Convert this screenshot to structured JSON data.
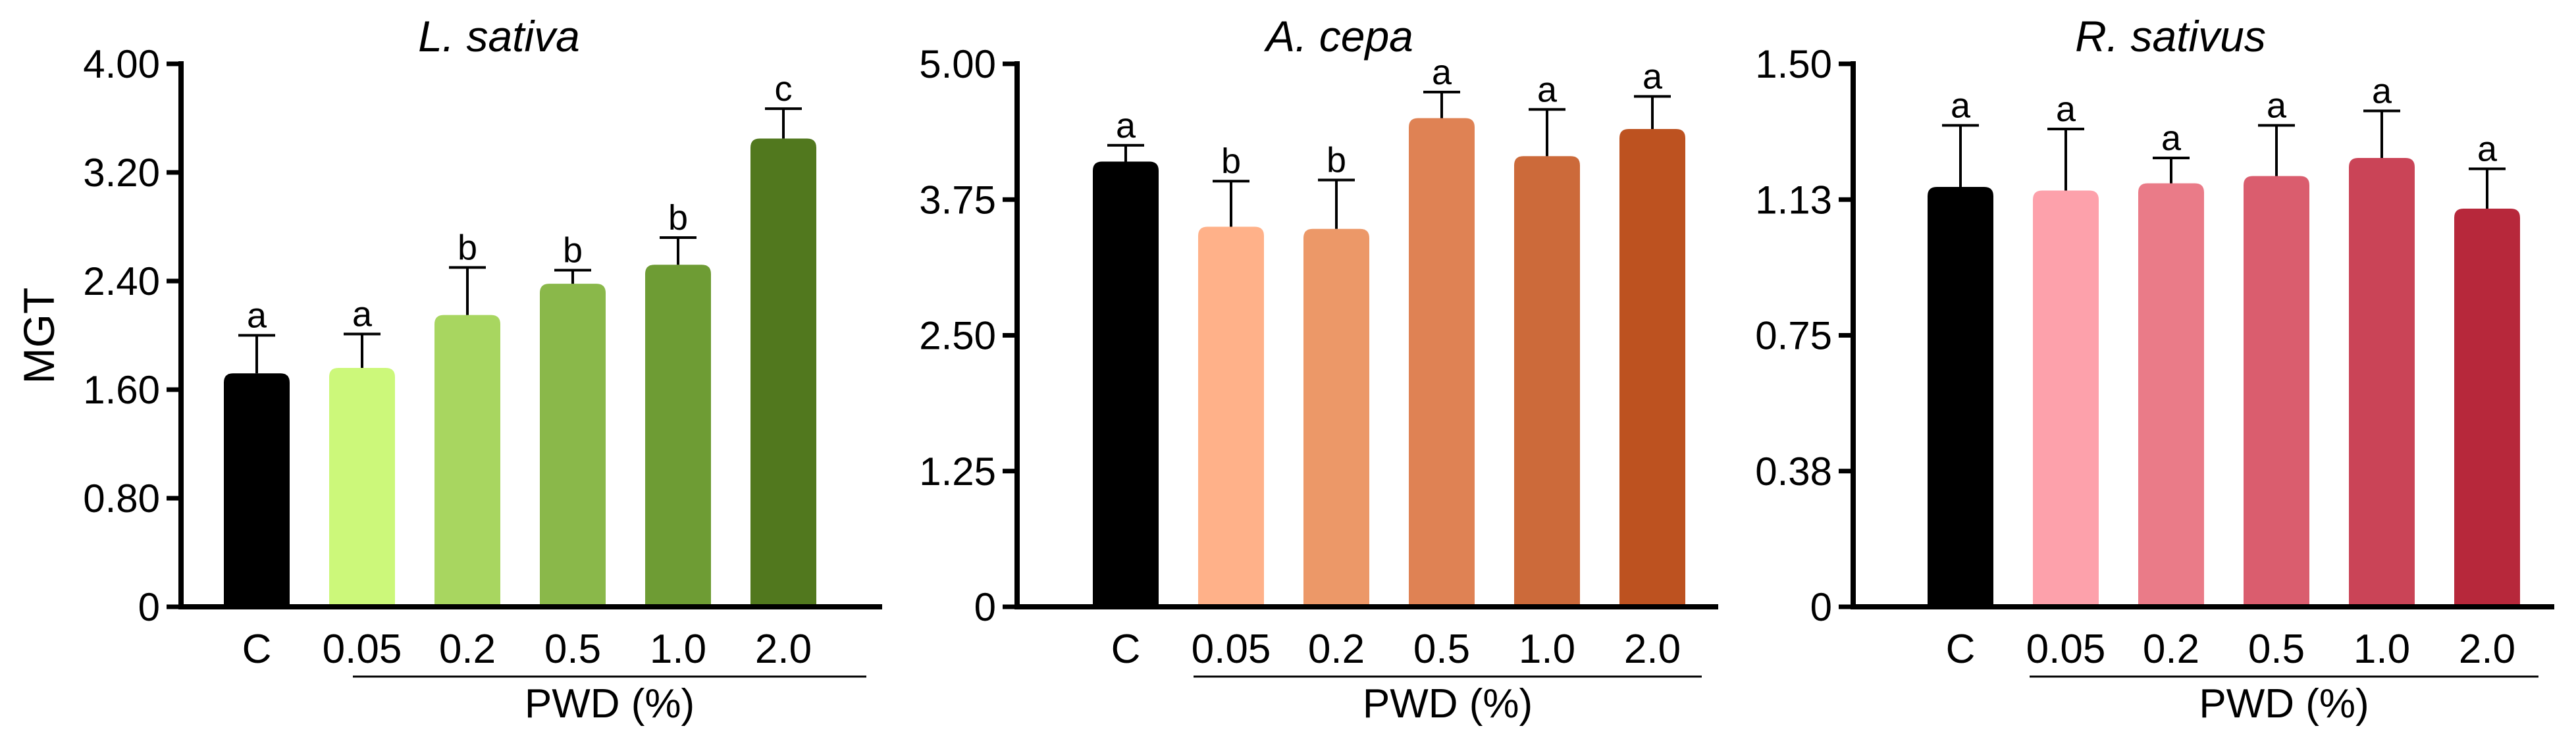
{
  "chart_data": [
    {
      "type": "bar",
      "title": "L. sativa",
      "xlabel": "PWD (%)",
      "ylabel": "MGT",
      "categories": [
        "C",
        "0.05",
        "0.2",
        "0.5",
        "1.0",
        "2.0"
      ],
      "values": [
        1.72,
        1.76,
        2.15,
        2.38,
        2.52,
        3.45
      ],
      "errors": [
        0.28,
        0.25,
        0.35,
        0.1,
        0.2,
        0.22
      ],
      "significance": [
        "a",
        "a",
        "b",
        "b",
        "b",
        "c"
      ],
      "colors": [
        "#000000",
        "#ccf87a",
        "#a8d660",
        "#8ab84a",
        "#6e9c34",
        "#51781e"
      ],
      "ylim": [
        0,
        4.0
      ],
      "yticks": [
        0,
        0.8,
        1.6,
        2.4,
        3.2,
        4.0
      ],
      "ytick_labels": [
        "0",
        "0.80",
        "1.60",
        "2.40",
        "3.20",
        "4.00"
      ]
    },
    {
      "type": "bar",
      "title": "A. cepa",
      "xlabel": "PWD (%)",
      "ylabel": "",
      "categories": [
        "C",
        "0.05",
        "0.2",
        "0.5",
        "1.0",
        "2.0"
      ],
      "values": [
        4.1,
        3.5,
        3.48,
        4.5,
        4.15,
        4.4
      ],
      "errors": [
        0.15,
        0.42,
        0.45,
        0.24,
        0.43,
        0.3
      ],
      "significance": [
        "a",
        "b",
        "b",
        "a",
        "a",
        "a"
      ],
      "colors": [
        "#000000",
        "#ffb189",
        "#ec9868",
        "#df8254",
        "#cc6a3a",
        "#bd5220"
      ],
      "ylim": [
        0,
        5.0
      ],
      "yticks": [
        0,
        1.25,
        2.5,
        3.75,
        5.0
      ],
      "ytick_labels": [
        "0",
        "1.25",
        "2.50",
        "3.75",
        "5.00"
      ]
    },
    {
      "type": "bar",
      "title": "R. sativus",
      "xlabel": "PWD (%)",
      "ylabel": "",
      "categories": [
        "C",
        "0.05",
        "0.2",
        "0.5",
        "1.0",
        "2.0"
      ],
      "values": [
        1.16,
        1.15,
        1.17,
        1.19,
        1.24,
        1.1
      ],
      "errors": [
        0.17,
        0.17,
        0.07,
        0.14,
        0.13,
        0.11
      ],
      "significance": [
        "a",
        "a",
        "a",
        "a",
        "a",
        "a"
      ],
      "colors": [
        "#000000",
        "#fda1ab",
        "#ea7b88",
        "#da5d6e",
        "#ca4457",
        "#b7283b"
      ],
      "ylim": [
        0,
        1.5
      ],
      "yticks": [
        0,
        0.375,
        0.75,
        1.125,
        1.5
      ],
      "ytick_labels": [
        "0",
        "0.38",
        "0.75",
        "1.13",
        "1.50"
      ]
    }
  ]
}
